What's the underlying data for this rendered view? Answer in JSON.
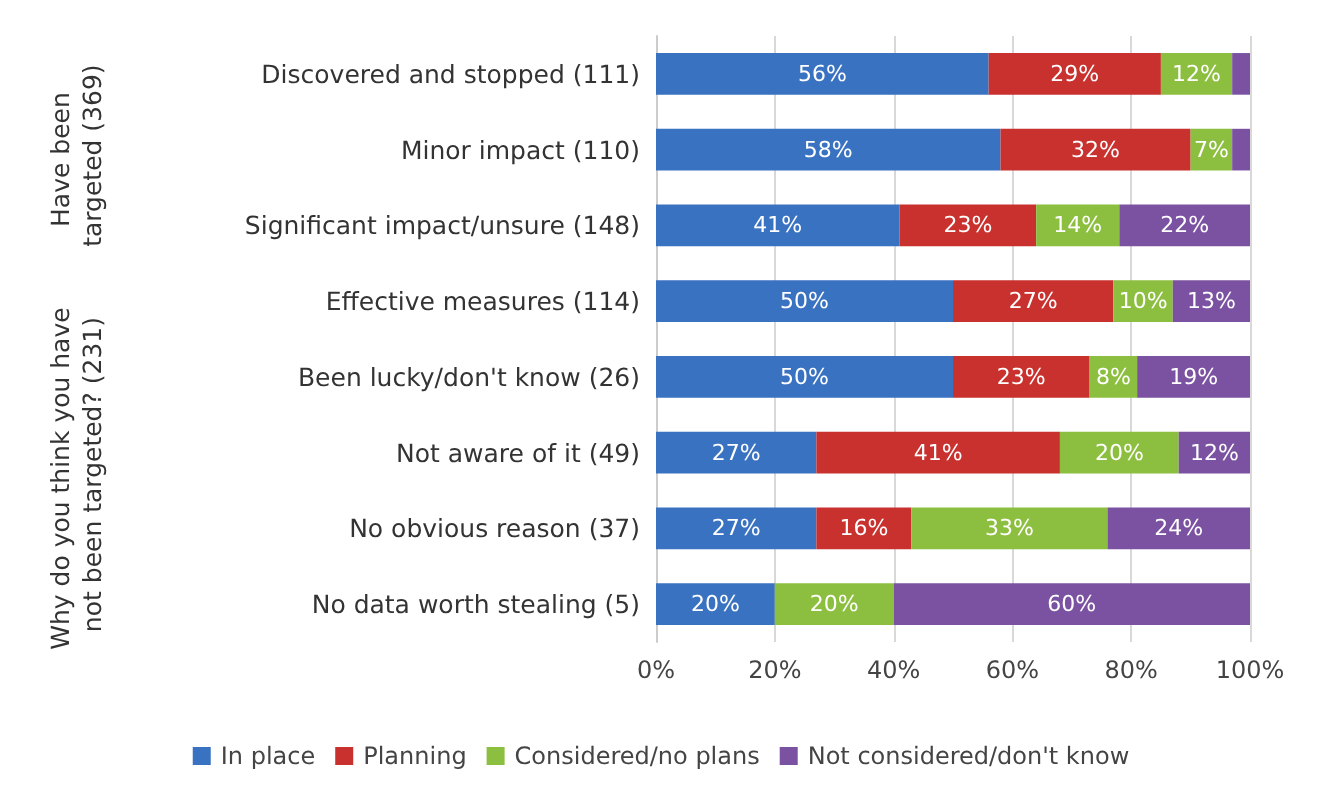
{
  "chart_data": {
    "type": "bar",
    "orientation": "horizontal",
    "stacked": true,
    "categories": [
      "Discovered and stopped (111)",
      "Minor impact (110)",
      "Significant impact/unsure (148)",
      "Effective measures (114)",
      "Been lucky/don't know (26)",
      "Not aware of it (49)",
      "No obvious reason (37)",
      "No data worth stealing (5)"
    ],
    "series": [
      {
        "name": "In place",
        "color": "#3a72c2",
        "values": [
          56,
          58,
          41,
          50,
          50,
          27,
          27,
          20
        ],
        "value_labels": [
          "56%",
          "58%",
          "41%",
          "50%",
          "50%",
          "27%",
          "27%",
          "20%"
        ]
      },
      {
        "name": "Planning",
        "color": "#c8312e",
        "values": [
          29,
          32,
          23,
          27,
          23,
          41,
          16,
          null
        ],
        "value_labels": [
          "29%",
          "32%",
          "23%",
          "27%",
          "23%",
          "41%",
          "16%",
          null
        ]
      },
      {
        "name": "Considered/no plans",
        "color": "#8cbf3f",
        "values": [
          12,
          7,
          14,
          10,
          8,
          20,
          33,
          20
        ],
        "value_labels": [
          "12%",
          "7%",
          "14%",
          "10%",
          "8%",
          "20%",
          "33%",
          "20%"
        ]
      },
      {
        "name": "Not considered/don't know",
        "color": "#7b52a1",
        "values": [
          3,
          3,
          22,
          13,
          19,
          12,
          24,
          60
        ],
        "value_labels": [
          null,
          null,
          "22%",
          "13%",
          "19%",
          "12%",
          "24%",
          "60%"
        ]
      }
    ],
    "xlim": [
      0,
      100
    ],
    "xticks": [
      {
        "value": 0,
        "label": "0%"
      },
      {
        "value": 20,
        "label": "20%"
      },
      {
        "value": 40,
        "label": "40%"
      },
      {
        "value": 60,
        "label": "60%"
      },
      {
        "value": 80,
        "label": "80%"
      },
      {
        "value": 100,
        "label": "100%"
      }
    ],
    "annotations": [
      "Have been targeted (369)",
      "Why do you think you have not been targeted? (231)"
    ],
    "grid": "x",
    "legend": "bottom"
  }
}
